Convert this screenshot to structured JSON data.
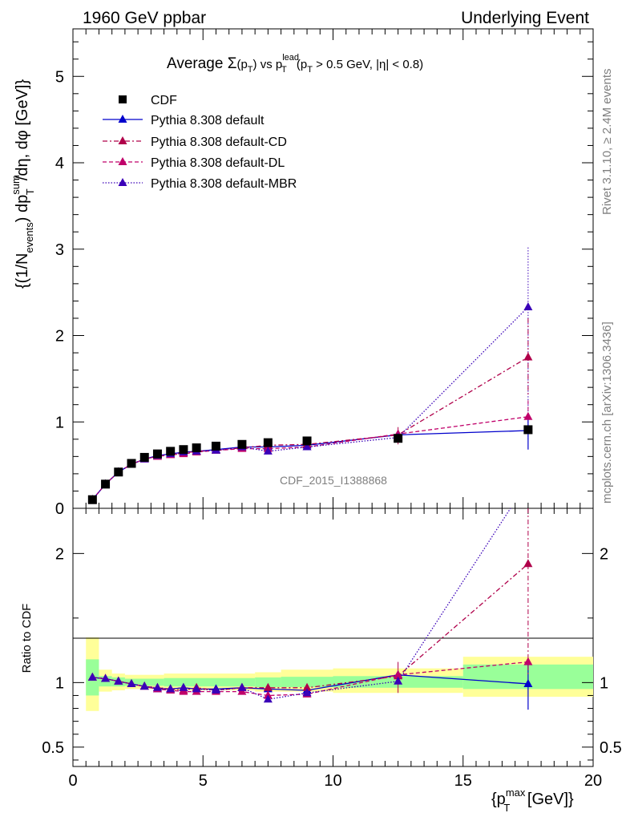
{
  "header": {
    "left": "1960 GeV ppbar",
    "right": "Underlying Event"
  },
  "plot_title": {
    "part1": "Average ",
    "sigma": "Σ",
    "pt_open": "(p",
    "sub_T": "T",
    "pt_close": ")",
    "vs": " vs p",
    "sup_lead": "lead",
    "sub_T2": "T",
    "cut_open": " (p",
    "sub_T3": "T",
    "cut_rest": " > 0.5 GeV, |η| < 0.8)"
  },
  "y_label_main": {
    "a": "{(1/N",
    "sub_events": "events",
    "b": ") dp",
    "sup_sum": "sum",
    "sub_T": "T",
    "c": "/dη, dφ [GeV]}"
  },
  "y_label_ratio": "Ratio to CDF",
  "x_label": {
    "a": "{p",
    "sup_max": "max",
    "sub_T": "T",
    "b": " [GeV]}"
  },
  "watermark": "CDF_2015_I1388868",
  "side_top": "Rivet 3.1.10, ≥ 2.4M events",
  "side_bottom": "mcplots.cern.ch [arXiv:1306.3436]",
  "legend": [
    "CDF",
    "Pythia 8.308 default",
    "Pythia 8.308 default-CD",
    "Pythia 8.308 default-DL",
    "Pythia 8.308 default-MBR"
  ],
  "colors": {
    "cdf": "#000000",
    "default": "#0000cc",
    "cd": "#b0004a",
    "dl": "#c0006a",
    "mbr": "#3a00b8",
    "band_yellow": "#ffff99",
    "band_green": "#99ff99"
  },
  "chart_data": {
    "type": "scatter",
    "main": {
      "xlim": [
        0,
        20
      ],
      "ylim": [
        0,
        5.55
      ],
      "x_ticks": [
        "0",
        "5",
        "10",
        "15",
        "20"
      ],
      "y_ticks": [
        "0",
        "1",
        "2",
        "3",
        "4",
        "5"
      ],
      "cdf": {
        "x": [
          0.75,
          1.25,
          1.75,
          2.25,
          2.75,
          3.25,
          3.75,
          4.25,
          4.75,
          5.5,
          6.5,
          7.5,
          9.0,
          12.5,
          17.5
        ],
        "y": [
          0.1,
          0.28,
          0.42,
          0.52,
          0.59,
          0.63,
          0.66,
          0.68,
          0.7,
          0.72,
          0.74,
          0.76,
          0.78,
          0.81,
          0.91
        ]
      },
      "series": [
        {
          "name": "Pythia 8.308 default",
          "key": "default",
          "x": [
            0.75,
            1.25,
            1.75,
            2.25,
            2.75,
            3.25,
            3.75,
            4.25,
            4.75,
            5.5,
            6.5,
            7.5,
            9.0,
            12.5,
            17.5
          ],
          "y": [
            0.1,
            0.28,
            0.42,
            0.51,
            0.57,
            0.61,
            0.63,
            0.65,
            0.66,
            0.68,
            0.71,
            0.71,
            0.73,
            0.85,
            0.9
          ]
        },
        {
          "name": "Pythia 8.308 default-CD",
          "key": "cd",
          "x": [
            0.75,
            1.25,
            1.75,
            2.25,
            2.75,
            3.25,
            3.75,
            4.25,
            4.75,
            5.5,
            6.5,
            7.5,
            9.0,
            12.5,
            17.5
          ],
          "y": [
            0.1,
            0.28,
            0.42,
            0.51,
            0.57,
            0.6,
            0.62,
            0.64,
            0.66,
            0.67,
            0.7,
            0.73,
            0.74,
            0.85,
            1.75
          ]
        },
        {
          "name": "Pythia 8.308 default-DL",
          "key": "dl",
          "x": [
            0.75,
            1.25,
            1.75,
            2.25,
            2.75,
            3.25,
            3.75,
            4.25,
            4.75,
            5.5,
            6.5,
            7.5,
            9.0,
            12.5,
            17.5
          ],
          "y": [
            0.1,
            0.28,
            0.42,
            0.51,
            0.57,
            0.6,
            0.62,
            0.63,
            0.65,
            0.67,
            0.69,
            0.69,
            0.71,
            0.86,
            1.06
          ]
        },
        {
          "name": "Pythia 8.308 default-MBR",
          "key": "mbr",
          "x": [
            0.75,
            1.25,
            1.75,
            2.25,
            2.75,
            3.25,
            3.75,
            4.25,
            4.75,
            5.5,
            6.5,
            7.5,
            9.0,
            12.5,
            17.5
          ],
          "y": [
            0.1,
            0.28,
            0.42,
            0.51,
            0.57,
            0.61,
            0.63,
            0.65,
            0.66,
            0.67,
            0.71,
            0.66,
            0.71,
            0.82,
            2.33
          ]
        }
      ]
    },
    "ratio": {
      "xlim": [
        0,
        20
      ],
      "ylim": [
        0.35,
        2.35
      ],
      "y_ticks": [
        "0.5",
        "1",
        "2"
      ],
      "y_tick_values": [
        0.5,
        1,
        2
      ],
      "bands": [
        {
          "x0": 0.5,
          "x1": 1.0,
          "yel": [
            0.78,
            1.35
          ],
          "grn": [
            0.9,
            1.18
          ]
        },
        {
          "x0": 1.0,
          "x1": 1.5,
          "yel": [
            0.93,
            1.1
          ],
          "grn": [
            0.97,
            1.05
          ]
        },
        {
          "x0": 1.5,
          "x1": 2.0,
          "yel": [
            0.94,
            1.07
          ],
          "grn": [
            0.97,
            1.04
          ]
        },
        {
          "x0": 2.0,
          "x1": 3.5,
          "yel": [
            0.95,
            1.06
          ],
          "grn": [
            0.975,
            1.03
          ]
        },
        {
          "x0": 3.5,
          "x1": 7.0,
          "yel": [
            0.94,
            1.07
          ],
          "grn": [
            0.97,
            1.035
          ]
        },
        {
          "x0": 7.0,
          "x1": 8.0,
          "yel": [
            0.93,
            1.08
          ],
          "grn": [
            0.965,
            1.04
          ]
        },
        {
          "x0": 8.0,
          "x1": 10.0,
          "yel": [
            0.93,
            1.1
          ],
          "grn": [
            0.965,
            1.045
          ]
        },
        {
          "x0": 10.0,
          "x1": 15.0,
          "yel": [
            0.92,
            1.11
          ],
          "grn": [
            0.96,
            1.05
          ]
        },
        {
          "x0": 15.0,
          "x1": 20.0,
          "yel": [
            0.89,
            1.2
          ],
          "grn": [
            0.95,
            1.14
          ]
        }
      ],
      "series": [
        {
          "key": "default",
          "y": [
            1.04,
            1.03,
            1.01,
            0.99,
            0.97,
            0.95,
            0.95,
            0.96,
            0.95,
            0.95,
            0.96,
            0.95,
            0.94,
            1.06,
            0.99
          ]
        },
        {
          "key": "cd",
          "y": [
            1.04,
            1.03,
            1.01,
            0.99,
            0.97,
            0.96,
            0.95,
            0.94,
            0.96,
            0.94,
            0.96,
            0.96,
            0.96,
            1.05,
            1.92
          ]
        },
        {
          "key": "dl",
          "y": [
            1.04,
            1.03,
            1.01,
            0.99,
            0.97,
            0.95,
            0.94,
            0.93,
            0.93,
            0.93,
            0.93,
            0.9,
            0.91,
            1.06,
            1.16
          ]
        },
        {
          "key": "mbr",
          "y": [
            1.04,
            1.03,
            1.01,
            0.99,
            0.97,
            0.96,
            0.95,
            0.96,
            0.95,
            0.94,
            0.96,
            0.87,
            0.92,
            1.01,
            2.56
          ]
        }
      ]
    }
  }
}
